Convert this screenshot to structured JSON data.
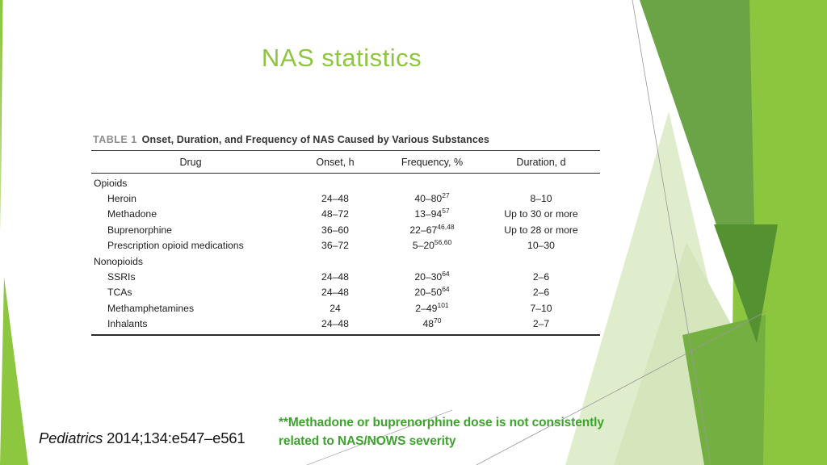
{
  "slide": {
    "title": "NAS statistics",
    "citation": {
      "journal": "Pediatrics",
      "rest": " 2014;134:e547–e561"
    },
    "annotation": "**Methadone or buprenorphine dose is not consistently related to NAS/NOWS severity"
  },
  "table": {
    "label": "TABLE 1",
    "caption": "Onset, Duration, and Frequency of NAS Caused by Various Substances",
    "columns": [
      "Drug",
      "Onset, h",
      "Frequency, %",
      "Duration, d"
    ],
    "rows": [
      {
        "drug": "Opioids",
        "group": true,
        "onset": "",
        "frequency": "",
        "freq_sup": "",
        "duration": ""
      },
      {
        "drug": "Heroin",
        "group": false,
        "onset": "24–48",
        "frequency": "40–80",
        "freq_sup": "27",
        "duration": "8–10"
      },
      {
        "drug": "Methadone",
        "group": false,
        "onset": "48–72",
        "frequency": "13–94",
        "freq_sup": "57",
        "duration": "Up to 30 or more"
      },
      {
        "drug": "Buprenorphine",
        "group": false,
        "onset": "36–60",
        "frequency": "22–67",
        "freq_sup": "46,48",
        "duration": "Up to 28 or more"
      },
      {
        "drug": "Prescription opioid medications",
        "group": false,
        "onset": "36–72",
        "frequency": "5–20",
        "freq_sup": "56,60",
        "duration": "10–30"
      },
      {
        "drug": "Nonopioids",
        "group": true,
        "onset": "",
        "frequency": "",
        "freq_sup": "",
        "duration": ""
      },
      {
        "drug": "SSRIs",
        "group": false,
        "onset": "24–48",
        "frequency": "20–30",
        "freq_sup": "64",
        "duration": "2–6"
      },
      {
        "drug": "TCAs",
        "group": false,
        "onset": "24–48",
        "frequency": "20–50",
        "freq_sup": "64",
        "duration": "2–6"
      },
      {
        "drug": "Methamphetamines",
        "group": false,
        "onset": "24",
        "frequency": "2–49",
        "freq_sup": "101",
        "duration": "7–10"
      },
      {
        "drug": "Inhalants",
        "group": false,
        "onset": "24–48",
        "frequency": "48",
        "freq_sup": "70",
        "duration": "2–7"
      }
    ]
  },
  "colors": {
    "title_green": "#8dc63f",
    "annotation_green": "#3da32d",
    "bright_green": "#8cc63f",
    "olive_green": "#6ba446",
    "medium_green": "#74af41",
    "dark_green": "#549130",
    "pale_green_light": "#e0edcd",
    "pale_green": "#d5e6bd",
    "line_gray": "#999999",
    "table_label_gray": "#8d8d8d"
  }
}
